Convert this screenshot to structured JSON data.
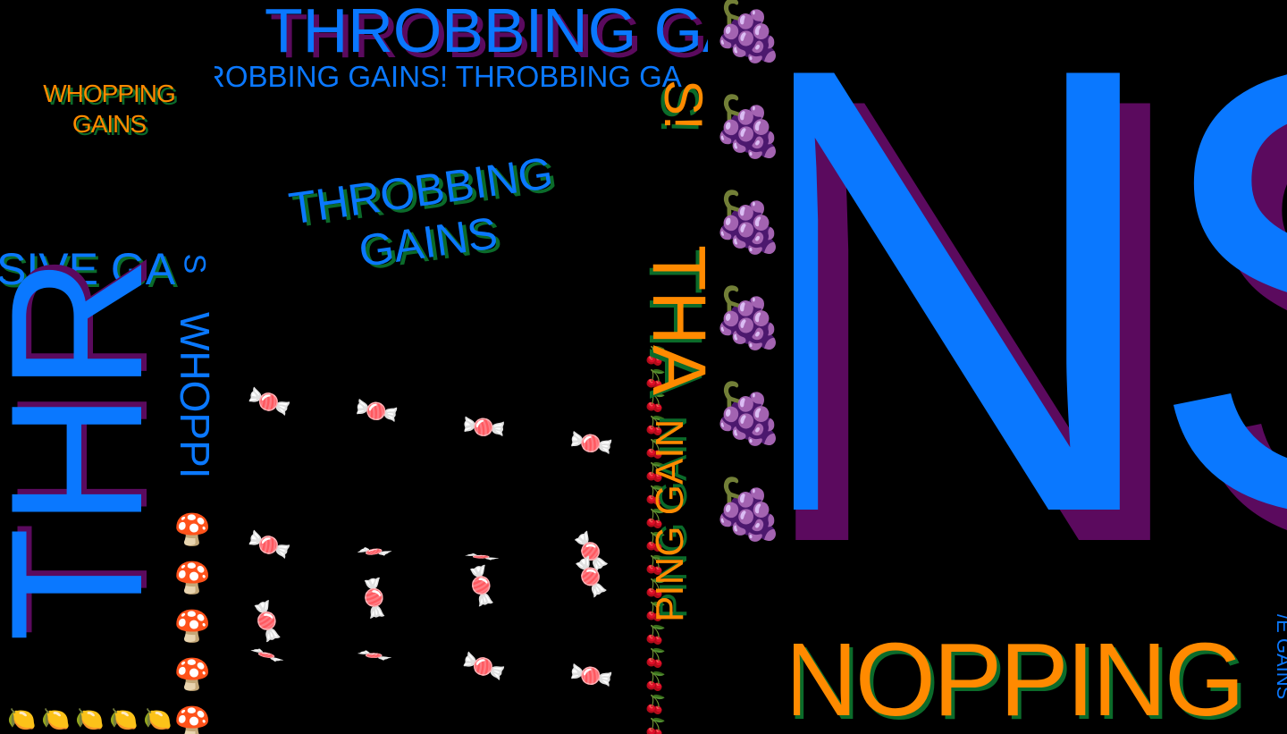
{
  "colors": {
    "background": "#000000",
    "blue": "#0a78ff",
    "orange": "#ff8a00",
    "purple": "#5b0a5e",
    "green": "#0b6b2a",
    "red": "#c0392b"
  },
  "texts": {
    "top_large": "THROBBING GA",
    "top_row": "ROBBING GAINS!   THROBBING GA",
    "whopping_gains_small": "WHOPPING GAINS",
    "throbbing_gains_tilted": "THROBBING GAINS",
    "massive_ga": "SIVE GA",
    "vertical_s": "S",
    "vertical_thr": "THR",
    "vertical_whoppi": "WHOPPI",
    "column_top": "S!",
    "column_tha": "THA",
    "column_ping_gain": "PING GAIN",
    "big_ns": "NS",
    "whopping_bottom": "NOPPING",
    "e_gains": "/E GAINS"
  },
  "icons": {
    "grape": "🍇",
    "candy": "🍬",
    "cherry": "🍒",
    "mushroom": "🍄",
    "lemon": "🍋"
  }
}
